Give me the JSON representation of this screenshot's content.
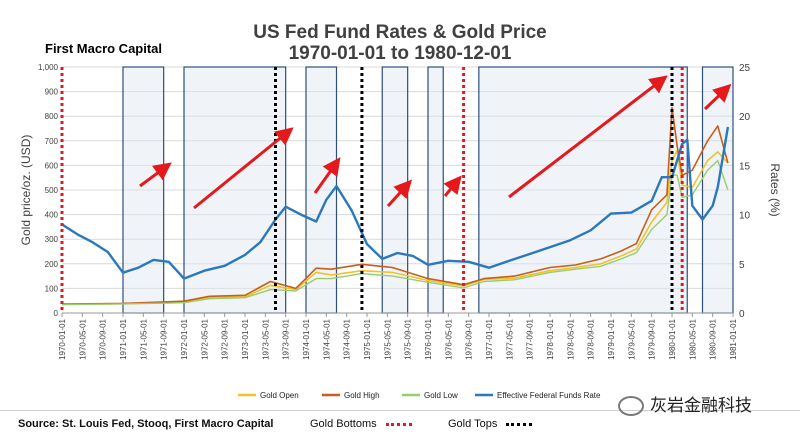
{
  "header": {
    "title_line1": "US Fed Fund Rates & Gold Price",
    "title_line2": "1970-01-01 to 1980-12-01",
    "brand": "First Macro Capital"
  },
  "footer": {
    "source": "Source: St. Louis Fed, Stooq, First Macro Capital",
    "bottoms_label": "Gold Bottoms",
    "tops_label": "Gold Tops",
    "watermark": "灰岩金融科技"
  },
  "colors": {
    "gold_open": "#f2c12e",
    "gold_high": "#c65f1a",
    "gold_low": "#9ccc6a",
    "fed_rate": "#2a78bd",
    "bottoms": "#e3191c",
    "tops": "#000000",
    "arrow": "#e3191c",
    "box_fill": "#dde6f2",
    "box_stroke": "#2b4f80"
  },
  "chart_data": {
    "type": "line",
    "title": "US Fed Fund Rates & Gold Price",
    "subtitle": "1970-01-01 to 1980-12-01",
    "ylabel": "Gold price/oz. (USD)",
    "y2label": "Rates (%)",
    "ylim": [
      0,
      1000
    ],
    "y2lim": [
      0,
      25
    ],
    "yticks": [
      "0",
      "100",
      "200",
      "300",
      "400",
      "500",
      "600",
      "700",
      "800",
      "900",
      "1,000"
    ],
    "y2ticks": [
      "0",
      "5",
      "10",
      "15",
      "20",
      "25"
    ],
    "xticks": [
      "1970-01-01",
      "1970-05-01",
      "1970-09-01",
      "1971-01-01",
      "1971-05-01",
      "1971-09-01",
      "1972-01-01",
      "1972-05-01",
      "1972-09-01",
      "1973-01-01",
      "1973-05-01",
      "1973-09-01",
      "1974-01-01",
      "1974-05-01",
      "1974-09-01",
      "1975-01-01",
      "1975-05-01",
      "1975-09-01",
      "1976-01-01",
      "1976-05-01",
      "1976-09-01",
      "1977-01-01",
      "1977-05-01",
      "1977-09-01",
      "1978-01-01",
      "1978-05-01",
      "1978-09-01",
      "1979-01-01",
      "1979-05-01",
      "1979-09-01",
      "1980-01-01",
      "1980-05-01",
      "1980-09-01",
      "1981-01-01"
    ],
    "grid": true,
    "legend_position": "bottom",
    "series": [
      {
        "name": "Gold Open",
        "axis": "left",
        "x": [
          "1970-01",
          "1971-01",
          "1971-09",
          "1972-01",
          "1972-06",
          "1973-01",
          "1973-06",
          "1973-11",
          "1974-03",
          "1974-06",
          "1974-12",
          "1975-06",
          "1976-01",
          "1976-08",
          "1976-12",
          "1977-06",
          "1978-01",
          "1978-06",
          "1978-11",
          "1979-03",
          "1979-06",
          "1979-09",
          "1979-12",
          "1980-01",
          "1980-02",
          "1980-03",
          "1980-05",
          "1980-08",
          "1980-10",
          "1980-12"
        ],
        "values": [
          35,
          38,
          42,
          44,
          62,
          66,
          112,
          95,
          165,
          155,
          172,
          165,
          132,
          110,
          136,
          142,
          172,
          185,
          200,
          232,
          260,
          370,
          450,
          620,
          660,
          520,
          510,
          620,
          655,
          610
        ]
      },
      {
        "name": "Gold High",
        "axis": "left",
        "x": [
          "1970-01",
          "1971-01",
          "1971-09",
          "1972-01",
          "1972-06",
          "1973-01",
          "1973-06",
          "1973-11",
          "1974-03",
          "1974-06",
          "1974-12",
          "1975-06",
          "1976-01",
          "1976-08",
          "1976-12",
          "1977-06",
          "1978-01",
          "1978-06",
          "1978-11",
          "1979-03",
          "1979-06",
          "1979-09",
          "1979-12",
          "1980-01",
          "1980-02",
          "1980-03",
          "1980-05",
          "1980-08",
          "1980-10",
          "1980-12"
        ],
        "values": [
          36,
          39,
          45,
          48,
          68,
          72,
          128,
          100,
          182,
          178,
          198,
          185,
          140,
          115,
          140,
          150,
          185,
          195,
          220,
          252,
          282,
          420,
          480,
          835,
          680,
          560,
          580,
          700,
          760,
          610
        ]
      },
      {
        "name": "Gold Low",
        "axis": "left",
        "x": [
          "1970-01",
          "1971-01",
          "1971-09",
          "1972-01",
          "1972-06",
          "1973-01",
          "1973-06",
          "1973-11",
          "1974-03",
          "1974-06",
          "1974-12",
          "1975-06",
          "1976-01",
          "1976-08",
          "1976-12",
          "1977-06",
          "1978-01",
          "1978-06",
          "1978-11",
          "1979-03",
          "1979-06",
          "1979-09",
          "1979-12",
          "1980-01",
          "1980-02",
          "1980-03",
          "1980-05",
          "1980-08",
          "1980-10",
          "1980-12"
        ],
        "values": [
          34,
          37,
          40,
          42,
          58,
          62,
          95,
          90,
          140,
          140,
          160,
          150,
          125,
          102,
          128,
          135,
          165,
          178,
          190,
          220,
          245,
          340,
          400,
          560,
          560,
          470,
          480,
          580,
          620,
          500
        ]
      },
      {
        "name": "Effective Federal Funds Rate",
        "axis": "right",
        "x": [
          "1970-01",
          "1970-04",
          "1970-07",
          "1970-10",
          "1971-01",
          "1971-04",
          "1971-07",
          "1971-10",
          "1972-01",
          "1972-05",
          "1972-09",
          "1973-01",
          "1973-04",
          "1973-07",
          "1973-09",
          "1973-12",
          "1974-03",
          "1974-05",
          "1974-07",
          "1974-10",
          "1975-01",
          "1975-04",
          "1975-07",
          "1975-10",
          "1976-01",
          "1976-05",
          "1976-09",
          "1977-01",
          "1977-05",
          "1977-09",
          "1978-01",
          "1978-05",
          "1978-09",
          "1979-01",
          "1979-05",
          "1979-09",
          "1979-11",
          "1980-01",
          "1980-03",
          "1980-04",
          "1980-05",
          "1980-07",
          "1980-09",
          "1980-10",
          "1980-12"
        ],
        "values": [
          9.0,
          8.0,
          7.2,
          6.2,
          4.1,
          4.6,
          5.4,
          5.2,
          3.5,
          4.3,
          4.8,
          5.9,
          7.2,
          9.5,
          10.8,
          10.0,
          9.3,
          11.5,
          12.9,
          10.4,
          7.0,
          5.5,
          6.1,
          5.8,
          4.9,
          5.3,
          5.2,
          4.6,
          5.3,
          6.0,
          6.7,
          7.4,
          8.4,
          10.1,
          10.2,
          11.4,
          13.8,
          13.8,
          17.2,
          17.6,
          10.9,
          9.5,
          10.9,
          12.8,
          18.9
        ]
      }
    ],
    "gold_bottoms": [
      "1970-01-01",
      "1976-08-01",
      "1980-03-01"
    ],
    "gold_tops": [
      "1973-07-01",
      "1974-12-01",
      "1980-01-01"
    ],
    "highlight_periods": [
      {
        "start": "1971-01-01",
        "end": "1971-09-01"
      },
      {
        "start": "1972-01-01",
        "end": "1973-09-01"
      },
      {
        "start": "1974-01-01",
        "end": "1974-07-01"
      },
      {
        "start": "1975-04-01",
        "end": "1975-09-01"
      },
      {
        "start": "1976-01-01",
        "end": "1976-04-01"
      },
      {
        "start": "1976-11-01",
        "end": "1980-04-01"
      },
      {
        "start": "1980-07-01",
        "end": "1981-01-01"
      }
    ]
  },
  "legend": {
    "open": "Gold Open",
    "high": "Gold High",
    "low": "Gold Low",
    "rate": "Effective Federal Funds Rate"
  }
}
